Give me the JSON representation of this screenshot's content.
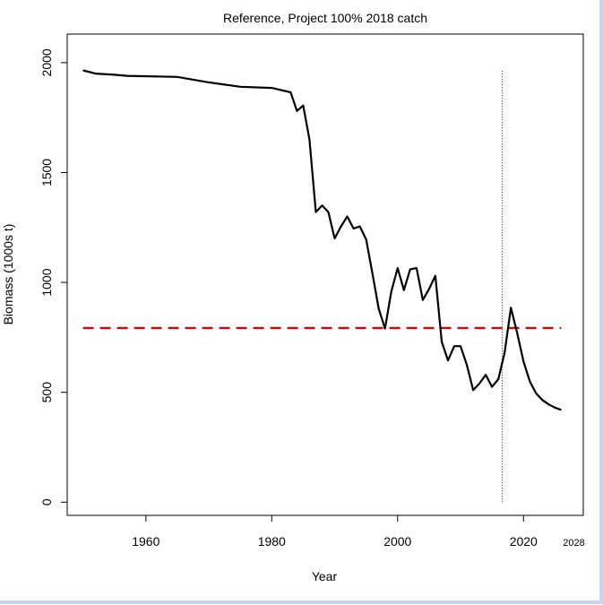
{
  "chart_data": {
    "type": "line",
    "title": "Reference, Project 100% 2018 catch",
    "xlabel": "Year",
    "ylabel": "Biomass (1000s t)",
    "xlim": [
      1947.5,
      2029.5
    ],
    "ylim": [
      -60,
      2130
    ],
    "xticks": [
      1960,
      1980,
      2000,
      2020
    ],
    "xtick_extra": "2028",
    "yticks": [
      0,
      500,
      1000,
      1500,
      2000
    ],
    "series": [
      {
        "name": "Biomass",
        "color": "#000000",
        "x": [
          1950,
          1952,
          1955,
          1957,
          1965,
          1970,
          1975,
          1980,
          1983,
          1984,
          1985,
          1986,
          1987,
          1988,
          1989,
          1990,
          1991,
          1992,
          1993,
          1994,
          1995,
          1996,
          1997,
          1998,
          1999,
          2000,
          2001,
          2002,
          2003,
          2004,
          2005,
          2006,
          2007,
          2008,
          2009,
          2010,
          2011,
          2012,
          2013,
          2014,
          2015,
          2016,
          2017,
          2018,
          2019,
          2020,
          2021,
          2022,
          2023,
          2024,
          2025,
          2026
        ],
        "y": [
          1965,
          1950,
          1945,
          1940,
          1935,
          1910,
          1890,
          1885,
          1865,
          1780,
          1805,
          1650,
          1320,
          1350,
          1320,
          1200,
          1255,
          1300,
          1245,
          1255,
          1195,
          1040,
          880,
          790,
          960,
          1065,
          965,
          1060,
          1065,
          920,
          970,
          1030,
          730,
          645,
          710,
          710,
          625,
          510,
          540,
          580,
          525,
          560,
          680,
          885,
          770,
          640,
          550,
          495,
          465,
          445,
          430,
          420
        ]
      }
    ],
    "reference_line": {
      "value": 793,
      "color": "#e00000",
      "style": "dashed",
      "x": [
        1950,
        2026
      ]
    },
    "vertical_line": {
      "x": 2016.6,
      "y": [
        0,
        1970
      ],
      "style": "dotted"
    }
  }
}
